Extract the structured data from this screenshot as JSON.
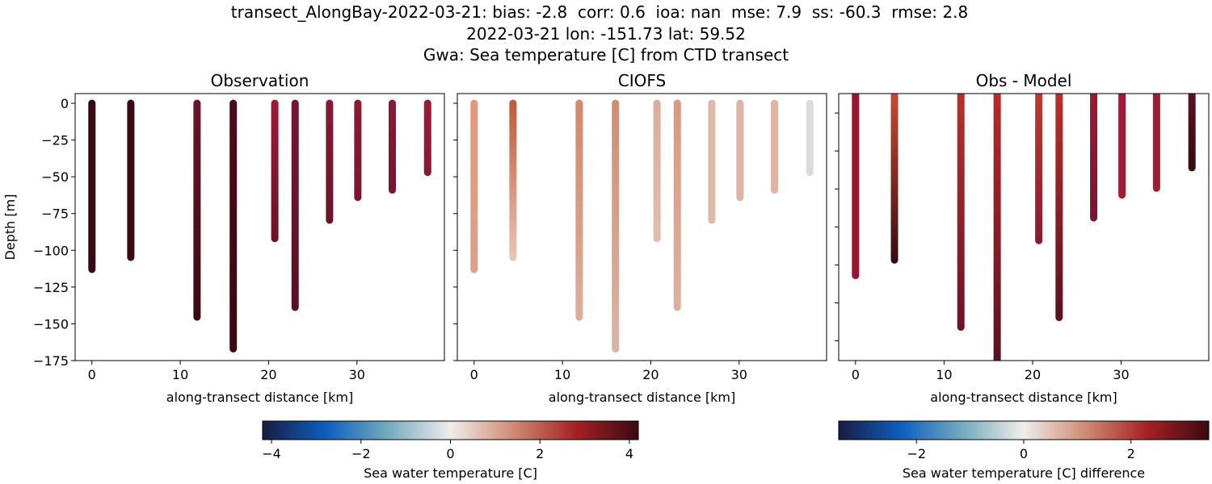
{
  "title_lines": [
    "transect_AlongBay-2022-03-21: bias: -2.8  corr: 0.6  ioa: nan  mse: 7.9  ss: -60.3  rmse: 2.8",
    "2022-03-21 lon: -151.73 lat: 59.52",
    "Gwa: Sea temperature [C] from CTD transect"
  ],
  "chart_data": [
    {
      "type": "scatter",
      "title": "Observation",
      "xlabel": "along-transect distance [km]",
      "ylabel": "Depth [m]",
      "x": [
        0,
        4.4,
        11.9,
        16,
        20.7,
        23,
        26.9,
        30.1,
        34,
        38
      ],
      "tops": [
        0,
        0,
        0,
        0,
        0,
        0,
        0,
        0,
        0,
        0
      ],
      "values": [
        -113,
        -104.8,
        -145.4,
        -167,
        -92,
        -138.8,
        -79.5,
        -64,
        -59,
        -47
      ],
      "top_colors": [
        "#3a0810",
        "#3a0810",
        "#6a1428",
        "#4a0c18",
        "#9a1a35",
        "#7a1530",
        "#8a1832",
        "#8a1a35",
        "#8a1a35",
        "#9a1b38"
      ],
      "bottom_colors": [
        "#3a0810",
        "#3a0810",
        "#3a0a12",
        "#3a0a12",
        "#6a1428",
        "#5a1020",
        "#6a1428",
        "#7a1530",
        "#7a1530",
        "#8a1832"
      ],
      "xlim": [
        -1.9,
        39.9
      ],
      "ylim": [
        -175,
        6.6
      ],
      "xticks": [
        0,
        10,
        20,
        30
      ],
      "yticks": [
        0,
        {
          "value": -25,
          "label": "−25"
        },
        {
          "value": -50,
          "label": "−50"
        },
        {
          "value": -75,
          "label": "−75"
        },
        {
          "value": -100,
          "label": "−100"
        },
        {
          "value": -125,
          "label": "−125"
        },
        {
          "value": -150,
          "label": "−150"
        },
        {
          "value": -175,
          "label": "−175"
        }
      ],
      "show_ylabels": true
    },
    {
      "type": "scatter",
      "title": "CIOFS",
      "xlabel": "along-transect distance [km]",
      "x": [
        0,
        4.4,
        11.9,
        16,
        20.7,
        23,
        26.9,
        30.1,
        34,
        38
      ],
      "tops": [
        0,
        0,
        0,
        0,
        0,
        0,
        0,
        0,
        0,
        0
      ],
      "values": [
        -113,
        -104.8,
        -145.4,
        -167,
        -92,
        -138.8,
        -79.5,
        -64,
        -59,
        -47
      ],
      "top_colors": [
        "#e09a7c",
        "#c25a38",
        "#d4886c",
        "#d48c70",
        "#dcae9c",
        "#d89a80",
        "#e0b8a8",
        "#e0b4a4",
        "#e0b4a4",
        "#d8dcdf"
      ],
      "bottom_colors": [
        "#dca08c",
        "#e8c4b8",
        "#dcae9c",
        "#dcb4a4",
        "#e0bcb0",
        "#dcb0a0",
        "#e0b8a8",
        "#e0b4a4",
        "#e0b4a4",
        "#d8dcdf"
      ],
      "xlim": [
        -1.9,
        39.9
      ],
      "ylim": [
        -175,
        6.6
      ],
      "xticks": [
        0,
        10,
        20,
        30
      ],
      "yticks": [
        0,
        -25,
        -50,
        -75,
        -100,
        -125,
        -150,
        -175
      ],
      "show_ylabels": false
    },
    {
      "type": "scatter",
      "title": "Obs - Model",
      "xlabel": "along-transect distance [km]",
      "x": [
        0,
        4.4,
        11.9,
        16,
        20.7,
        23,
        26.9,
        30.1,
        34,
        38
      ],
      "tops": [
        12.8,
        12.8,
        12.8,
        12.8,
        12.8,
        12.8,
        12.8,
        12.8,
        12.8,
        12.8
      ],
      "values": [
        -107,
        -96.8,
        -141,
        -163,
        -84,
        -134.6,
        -69,
        -54,
        -49.5,
        -36
      ],
      "top_colors": [
        "#9a1530",
        "#c84a30",
        "#b8302a",
        "#b82a2a",
        "#c03a2e",
        "#b8302a",
        "#9a1a35",
        "#a01c35",
        "#a01c35",
        "#5a1020"
      ],
      "bottom_colors": [
        "#9a1530",
        "#3a0c12",
        "#6a1428",
        "#5a1020",
        "#8a1a30",
        "#5a1020",
        "#7a1530",
        "#a01c35",
        "#a01c35",
        "#3a0a12"
      ],
      "xlim": [
        -1.9,
        39.9
      ],
      "ylim": [
        -163,
        12.8
      ],
      "xticks": [
        0,
        10,
        20,
        30
      ],
      "yticks": [
        0,
        -25,
        -50,
        -75,
        -100,
        -125,
        -150
      ],
      "show_ylabels": false
    }
  ],
  "colorbars": [
    {
      "label": "Sea water temperature [C]",
      "lim": [
        -4.2,
        4.2
      ],
      "ticks": [
        {
          "value": -4,
          "label": "−4"
        },
        {
          "value": -2,
          "label": "−2"
        },
        0,
        2,
        4
      ],
      "colors": [
        "#181c43",
        "#0c5ebe",
        "#75aabe",
        "#f1eceb",
        "#d08b73",
        "#a52125",
        "#3c0912"
      ]
    },
    {
      "label": "Sea water temperature [C] difference",
      "lim": [
        -3.45,
        3.45
      ],
      "ticks": [
        {
          "value": -2,
          "label": "−2"
        },
        0,
        2
      ],
      "colors": [
        "#181c43",
        "#0c5ebe",
        "#75aabe",
        "#f1eceb",
        "#d08b73",
        "#a52125",
        "#3c0912"
      ]
    }
  ]
}
